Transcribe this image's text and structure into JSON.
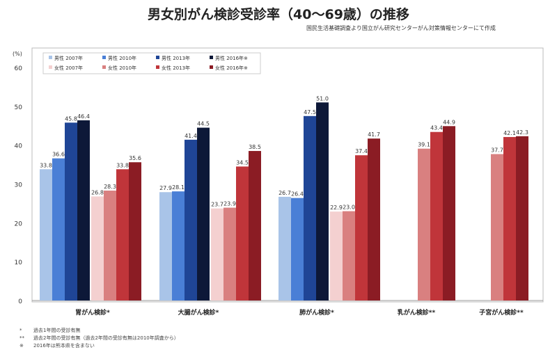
{
  "chart_data": {
    "type": "bar",
    "title": "男女別がん検診受診率（40〜69歳）の推移",
    "subtitle": "国民生活基礎調査より国立がん研究センターがん対策情報センターにて作成",
    "ylabel": "(%)",
    "ylim": [
      0,
      60
    ],
    "yticks": [
      "0",
      "10",
      "20",
      "30",
      "40",
      "50",
      "60"
    ],
    "grid": false,
    "legend_position": "top-left",
    "categories": [
      "胃がん検診*",
      "大腸がん検診*",
      "肺がん検診*",
      "乳がん検診**",
      "子宮がん検診**"
    ],
    "series": [
      {
        "name": "男性 2007年",
        "color": "#a9c4e8",
        "values": [
          33.8,
          27.9,
          26.7,
          null,
          null
        ]
      },
      {
        "name": "男性 2010年",
        "color": "#4a7fd6",
        "values": [
          36.6,
          28.1,
          26.4,
          null,
          null
        ]
      },
      {
        "name": "男性 2013年",
        "color": "#1f4596",
        "values": [
          45.8,
          41.4,
          47.5,
          null,
          null
        ]
      },
      {
        "name": "男性 2016年※",
        "color": "#0d1838",
        "values": [
          46.4,
          44.5,
          51.0,
          null,
          null
        ]
      },
      {
        "name": "女性 2007年",
        "color": "#f4d0d0",
        "values": [
          26.8,
          23.7,
          22.9,
          null,
          null
        ]
      },
      {
        "name": "女性 2010年",
        "color": "#d98080",
        "values": [
          28.3,
          23.9,
          23.0,
          39.1,
          37.7
        ]
      },
      {
        "name": "女性 2013年",
        "color": "#c0353a",
        "values": [
          33.8,
          34.5,
          37.4,
          43.4,
          42.1
        ]
      },
      {
        "name": "女性 2016年※",
        "color": "#8b1c24",
        "values": [
          35.6,
          38.5,
          41.7,
          44.9,
          42.3
        ]
      }
    ],
    "notes": [
      {
        "mark": "*",
        "text": "過去1年間の受診有無"
      },
      {
        "mark": "**",
        "text": "過去2年間の受診有無（過去2年間の受診有無は2010年調査から）"
      },
      {
        "mark": "※",
        "text": "2016年は熊本県を含まない"
      }
    ]
  }
}
